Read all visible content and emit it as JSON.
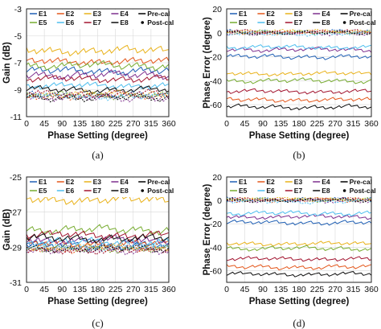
{
  "colors": {
    "E1": "#1f5fb4",
    "E2": "#e4571b",
    "E3": "#e9b21a",
    "E4": "#7e2f8e",
    "E5": "#77ac30",
    "E6": "#4dbeee",
    "E7": "#a2142f",
    "E8": "#0c0c0c",
    "axis": "#222222",
    "grid": "#d8d8d8"
  },
  "legend": {
    "row1": [
      "E1",
      "E2",
      "E3",
      "E4",
      "Pre-cal"
    ],
    "row2": [
      "E5",
      "E6",
      "E7",
      "E8",
      "Post-cal"
    ]
  },
  "chart_data": [
    {
      "id": "a",
      "caption": "(a)",
      "type": "line",
      "xlabel": "Phase Setting (degree)",
      "ylabel": "Gain (dB)",
      "xlim": [
        0,
        360
      ],
      "ylim": [
        -11,
        -3
      ],
      "xticks": [
        "0",
        "45",
        "90",
        "135",
        "180",
        "225",
        "270",
        "315",
        "360"
      ],
      "yticks": [
        "-3",
        "-5",
        "-7",
        "-9",
        "-11"
      ],
      "grid": true,
      "legend_position": "top-right",
      "series": [
        {
          "name": "E1",
          "mode": "pre",
          "level": -7.6,
          "amp": 0.22
        },
        {
          "name": "E2",
          "mode": "pre",
          "level": -6.9,
          "amp": 0.22
        },
        {
          "name": "E3",
          "mode": "pre",
          "level": -6.1,
          "amp": 0.25
        },
        {
          "name": "E4",
          "mode": "pre",
          "level": -7.9,
          "amp": 0.22
        },
        {
          "name": "E5",
          "mode": "pre",
          "level": -7.2,
          "amp": 0.22
        },
        {
          "name": "E6",
          "mode": "pre",
          "level": -8.7,
          "amp": 0.2
        },
        {
          "name": "E7",
          "mode": "pre",
          "level": -8.2,
          "amp": 0.2
        },
        {
          "name": "E8",
          "mode": "pre",
          "level": -9.0,
          "amp": 0.18
        },
        {
          "name": "E1",
          "mode": "post",
          "level": -9.4,
          "amp": 0.2
        },
        {
          "name": "E2",
          "mode": "post",
          "level": -9.5,
          "amp": 0.2
        },
        {
          "name": "E3",
          "mode": "post",
          "level": -9.3,
          "amp": 0.2
        },
        {
          "name": "E4",
          "mode": "post",
          "level": -9.6,
          "amp": 0.2
        },
        {
          "name": "E5",
          "mode": "post",
          "level": -9.4,
          "amp": 0.2
        },
        {
          "name": "E6",
          "mode": "post",
          "level": -9.5,
          "amp": 0.2
        },
        {
          "name": "E7",
          "mode": "post",
          "level": -9.3,
          "amp": 0.2
        },
        {
          "name": "E8",
          "mode": "post",
          "level": -9.6,
          "amp": 0.2
        }
      ]
    },
    {
      "id": "b",
      "caption": "(b)",
      "type": "line",
      "xlabel": "Phase Setting (degree)",
      "ylabel": "Phase Error (degree)",
      "xlim": [
        0,
        360
      ],
      "ylim": [
        -70,
        20
      ],
      "xticks": [
        "0",
        "45",
        "90",
        "135",
        "180",
        "225",
        "270",
        "315",
        "360"
      ],
      "yticks": [
        "20",
        "0",
        "-20",
        "-40",
        "-60"
      ],
      "grid": true,
      "legend_position": "top-right",
      "series": [
        {
          "name": "E1",
          "mode": "pre",
          "level": -20,
          "amp": 1.5
        },
        {
          "name": "E2",
          "mode": "pre",
          "level": -56,
          "amp": 1.5
        },
        {
          "name": "E3",
          "mode": "pre",
          "level": -34,
          "amp": 1.5
        },
        {
          "name": "E4",
          "mode": "pre",
          "level": -14,
          "amp": 1.5
        },
        {
          "name": "E5",
          "mode": "pre",
          "level": -40,
          "amp": 1.5
        },
        {
          "name": "E6",
          "mode": "pre",
          "level": -12,
          "amp": 1.5
        },
        {
          "name": "E7",
          "mode": "pre",
          "level": -49,
          "amp": 1.5
        },
        {
          "name": "E8",
          "mode": "pre",
          "level": -62,
          "amp": 1.5
        },
        {
          "name": "E1",
          "mode": "post",
          "level": 1,
          "amp": 1.3
        },
        {
          "name": "E2",
          "mode": "post",
          "level": 0,
          "amp": 1.3
        },
        {
          "name": "E3",
          "mode": "post",
          "level": 1.5,
          "amp": 1.3
        },
        {
          "name": "E4",
          "mode": "post",
          "level": -0.5,
          "amp": 1.3
        },
        {
          "name": "E5",
          "mode": "post",
          "level": 0.5,
          "amp": 1.3
        },
        {
          "name": "E6",
          "mode": "post",
          "level": -1,
          "amp": 1.3
        },
        {
          "name": "E7",
          "mode": "post",
          "level": 1,
          "amp": 1.3
        },
        {
          "name": "E8",
          "mode": "post",
          "level": 0,
          "amp": 1.3
        }
      ]
    },
    {
      "id": "c",
      "caption": "(c)",
      "type": "line",
      "xlabel": "Phase Setting (degree)",
      "ylabel": "Gain (dB)",
      "xlim": [
        0,
        360
      ],
      "ylim": [
        -31,
        -25
      ],
      "xticks": [
        "0",
        "45",
        "90",
        "135",
        "180",
        "225",
        "270",
        "315",
        "360"
      ],
      "yticks": [
        "-25",
        "-27",
        "-29",
        "-31"
      ],
      "grid": true,
      "legend_position": "top-right",
      "series": [
        {
          "name": "E1",
          "mode": "pre",
          "level": -28.9,
          "amp": 0.18
        },
        {
          "name": "E2",
          "mode": "pre",
          "level": -28.8,
          "amp": 0.18
        },
        {
          "name": "E3",
          "mode": "pre",
          "level": -26.3,
          "amp": 0.2
        },
        {
          "name": "E4",
          "mode": "pre",
          "level": -28.6,
          "amp": 0.18
        },
        {
          "name": "E5",
          "mode": "pre",
          "level": -28.0,
          "amp": 0.18
        },
        {
          "name": "E6",
          "mode": "pre",
          "level": -28.7,
          "amp": 0.18
        },
        {
          "name": "E7",
          "mode": "pre",
          "level": -28.3,
          "amp": 0.18
        },
        {
          "name": "E8",
          "mode": "pre",
          "level": -28.5,
          "amp": 0.18
        },
        {
          "name": "E1",
          "mode": "post",
          "level": -29.0,
          "amp": 0.15
        },
        {
          "name": "E2",
          "mode": "post",
          "level": -29.1,
          "amp": 0.15
        },
        {
          "name": "E3",
          "mode": "post",
          "level": -29.0,
          "amp": 0.15
        },
        {
          "name": "E4",
          "mode": "post",
          "level": -29.2,
          "amp": 0.15
        },
        {
          "name": "E5",
          "mode": "post",
          "level": -29.1,
          "amp": 0.15
        },
        {
          "name": "E6",
          "mode": "post",
          "level": -29.0,
          "amp": 0.15
        },
        {
          "name": "E7",
          "mode": "post",
          "level": -29.2,
          "amp": 0.15
        },
        {
          "name": "E8",
          "mode": "post",
          "level": -29.1,
          "amp": 0.15
        }
      ]
    },
    {
      "id": "d",
      "caption": "(d)",
      "type": "line",
      "xlabel": "Phase Setting (degree)",
      "ylabel": "Phase Error (degree)",
      "xlim": [
        0,
        360
      ],
      "ylim": [
        -70,
        20
      ],
      "xticks": [
        "0",
        "45",
        "90",
        "135",
        "180",
        "225",
        "270",
        "315",
        "360"
      ],
      "yticks": [
        "20",
        "0",
        "-20",
        "-40",
        "-60"
      ],
      "grid": true,
      "legend_position": "top-right",
      "series": [
        {
          "name": "E1",
          "mode": "pre",
          "level": -19,
          "amp": 1.5
        },
        {
          "name": "E2",
          "mode": "pre",
          "level": -57,
          "amp": 1.5
        },
        {
          "name": "E3",
          "mode": "pre",
          "level": -37,
          "amp": 1.5
        },
        {
          "name": "E4",
          "mode": "pre",
          "level": -14,
          "amp": 1.5
        },
        {
          "name": "E5",
          "mode": "pre",
          "level": -41,
          "amp": 1.5
        },
        {
          "name": "E6",
          "mode": "pre",
          "level": -11,
          "amp": 1.5
        },
        {
          "name": "E7",
          "mode": "pre",
          "level": -50,
          "amp": 1.5
        },
        {
          "name": "E8",
          "mode": "pre",
          "level": -63,
          "amp": 1.5
        },
        {
          "name": "E1",
          "mode": "post",
          "level": 1,
          "amp": 1.3
        },
        {
          "name": "E2",
          "mode": "post",
          "level": 0,
          "amp": 1.3
        },
        {
          "name": "E3",
          "mode": "post",
          "level": 1.5,
          "amp": 1.3
        },
        {
          "name": "E4",
          "mode": "post",
          "level": -0.5,
          "amp": 1.3
        },
        {
          "name": "E5",
          "mode": "post",
          "level": 0.5,
          "amp": 1.3
        },
        {
          "name": "E6",
          "mode": "post",
          "level": -1,
          "amp": 1.3
        },
        {
          "name": "E7",
          "mode": "post",
          "level": 1,
          "amp": 1.3
        },
        {
          "name": "E8",
          "mode": "post",
          "level": 0,
          "amp": 1.3
        }
      ]
    }
  ]
}
